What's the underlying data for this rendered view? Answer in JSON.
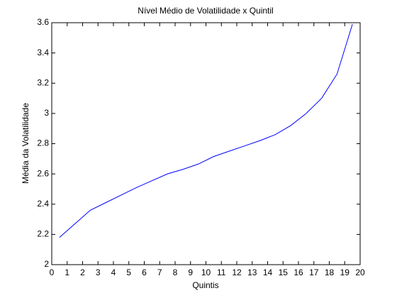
{
  "chart_data": {
    "type": "line",
    "title": "Nível Médio de Volatilidade x Quintil",
    "xlabel": "Quintis",
    "ylabel": "Média da Volatilidade",
    "x": [
      0.5,
      1.5,
      2.5,
      3.5,
      4.5,
      5.5,
      6.5,
      7.5,
      8.5,
      9.5,
      10.5,
      11.5,
      12.5,
      13.5,
      14.5,
      15.5,
      16.5,
      17.5,
      18.5,
      19.5
    ],
    "values": [
      2.18,
      2.27,
      2.36,
      2.41,
      2.46,
      2.51,
      2.555,
      2.6,
      2.63,
      2.665,
      2.715,
      2.75,
      2.785,
      2.82,
      2.86,
      2.92,
      3.0,
      3.1,
      3.26,
      3.59
    ],
    "color": "#0000ff",
    "xlim": [
      0,
      20
    ],
    "xticks": [
      0,
      1,
      2,
      3,
      4,
      5,
      6,
      7,
      8,
      9,
      10,
      11,
      12,
      13,
      14,
      15,
      16,
      17,
      18,
      19,
      20
    ],
    "ylim": [
      2,
      3.6
    ],
    "yticks": [
      2,
      2.2,
      2.4,
      2.6,
      2.8,
      3,
      3.2,
      3.4,
      3.6
    ],
    "grid": false
  }
}
